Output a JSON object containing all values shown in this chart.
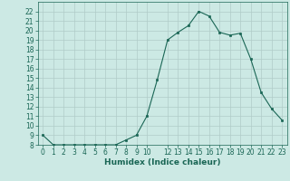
{
  "x": [
    0,
    1,
    2,
    3,
    4,
    5,
    6,
    7,
    8,
    9,
    10,
    11,
    12,
    13,
    14,
    15,
    16,
    17,
    18,
    19,
    20,
    21,
    22,
    23
  ],
  "y": [
    9.0,
    8.0,
    8.0,
    8.0,
    8.0,
    8.0,
    8.0,
    8.0,
    8.5,
    9.0,
    11.0,
    14.8,
    19.0,
    19.8,
    20.5,
    22.0,
    21.5,
    19.8,
    19.5,
    19.7,
    17.0,
    13.5,
    11.8,
    10.6
  ],
  "xlabel": "Humidex (Indice chaleur)",
  "ylim": [
    8,
    23
  ],
  "xlim": [
    -0.5,
    23.5
  ],
  "bg_color": "#cce9e4",
  "grid_color": "#b0ccc8",
  "line_color": "#1a6655",
  "marker_color": "#1a6655",
  "tick_fontsize": 5.5,
  "xlabel_fontsize": 6.5,
  "yticks": [
    8,
    9,
    10,
    11,
    12,
    13,
    14,
    15,
    16,
    17,
    18,
    19,
    20,
    21,
    22
  ],
  "xticks": [
    0,
    1,
    2,
    3,
    4,
    5,
    6,
    7,
    8,
    9,
    10,
    12,
    13,
    14,
    15,
    16,
    17,
    18,
    19,
    20,
    21,
    22,
    23
  ]
}
